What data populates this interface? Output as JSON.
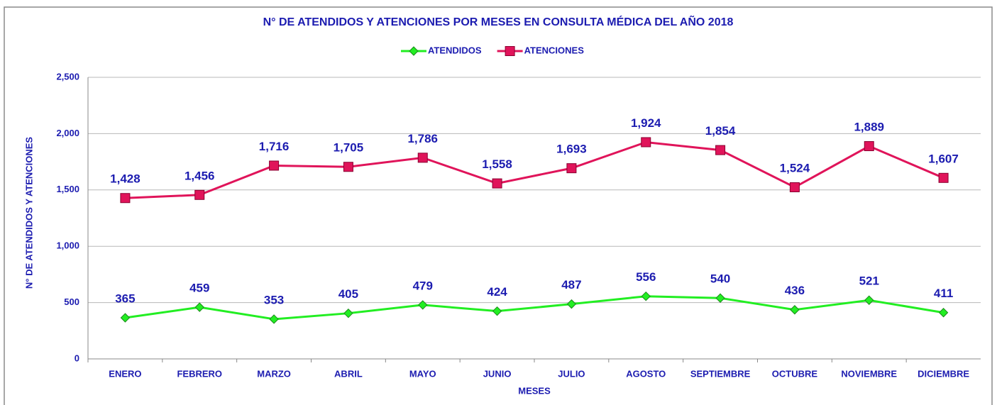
{
  "chart_data": {
    "type": "line",
    "title": "N° DE ATENDIDOS Y ATENCIONES POR MESES EN CONSULTA MÉDICA DEL AÑO 2018",
    "x_label": "MESES",
    "y_label": "N° DE ATENDIDOS Y ATENCIONES",
    "categories": [
      "ENERO",
      "FEBRERO",
      "MARZO",
      "ABRIL",
      "MAYO",
      "JUNIO",
      "JULIO",
      "AGOSTO",
      "SEPTIEMBRE",
      "OCTUBRE",
      "NOVIEMBRE",
      "DICIEMBRE"
    ],
    "series": [
      {
        "name": "ATENDIDOS",
        "color": "#22ee22",
        "marker": "diamond",
        "values": [
          365,
          459,
          353,
          405,
          479,
          424,
          487,
          556,
          540,
          436,
          521,
          411
        ]
      },
      {
        "name": "ATENCIONES",
        "color": "#e0145a",
        "marker": "square",
        "values": [
          1428,
          1456,
          1716,
          1705,
          1786,
          1558,
          1693,
          1924,
          1854,
          1524,
          1889,
          1607
        ],
        "value_labels": [
          "1,428",
          "1,456",
          "1,716",
          "1,705",
          "1,786",
          "1,558",
          "1,693",
          "1,924",
          "1,854",
          "1,524",
          "1,889",
          "1,607"
        ]
      }
    ],
    "ylim": [
      0,
      2500
    ],
    "yticks": [
      0,
      500,
      {
        "value": 1000,
        "label": "1,000"
      },
      {
        "value": 1500,
        "label": "1,500"
      },
      {
        "value": 2000,
        "label": "2,000"
      },
      {
        "value": 2500,
        "label": "2,500"
      }
    ],
    "grid": true,
    "legend": "top"
  }
}
